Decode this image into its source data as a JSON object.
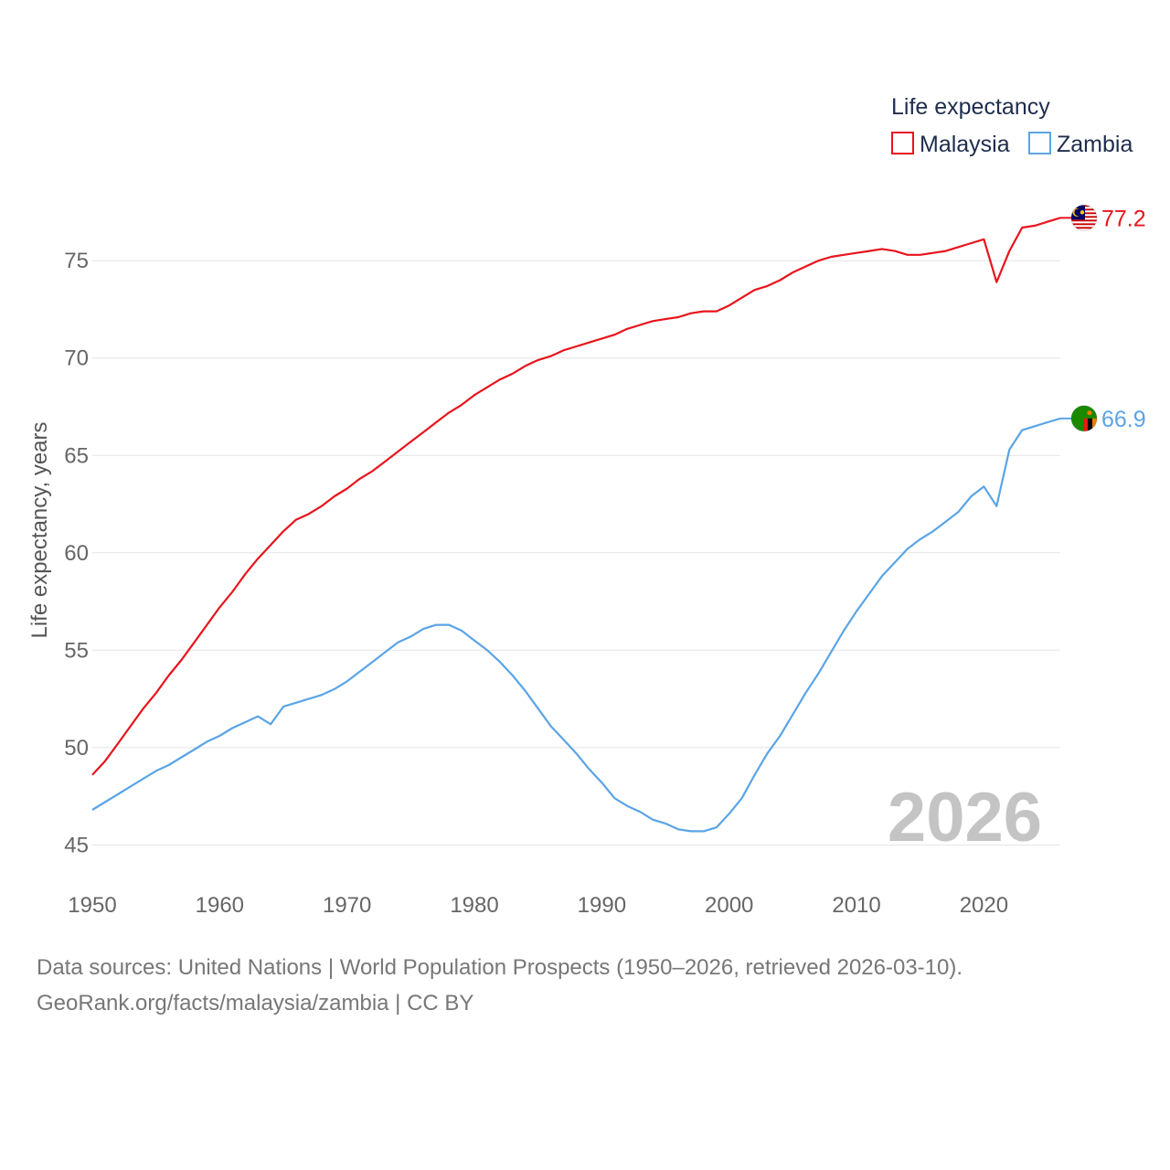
{
  "chart_data": {
    "type": "line",
    "legend_title": "Life expectancy",
    "ylabel": "Life expectancy, years",
    "xlabel": "",
    "xlim": [
      1950,
      2026
    ],
    "ylim": [
      44.5,
      79.0
    ],
    "x_ticks": [
      "1950",
      "1960",
      "1970",
      "1980",
      "1990",
      "2000",
      "2010",
      "2020"
    ],
    "y_ticks": [
      "45",
      "50",
      "55",
      "60",
      "65",
      "70",
      "75"
    ],
    "year_watermark": "2026",
    "series": [
      {
        "name": "Malaysia",
        "color": "#e8141c",
        "end_label": "77.2",
        "flag_icon": "malaysia-flag-icon",
        "x": [
          1950,
          1951,
          1952,
          1953,
          1954,
          1955,
          1956,
          1957,
          1958,
          1959,
          1960,
          1961,
          1962,
          1963,
          1964,
          1965,
          1966,
          1967,
          1968,
          1969,
          1970,
          1971,
          1972,
          1973,
          1974,
          1975,
          1976,
          1977,
          1978,
          1979,
          1980,
          1981,
          1982,
          1983,
          1984,
          1985,
          1986,
          1987,
          1988,
          1989,
          1990,
          1991,
          1992,
          1993,
          1994,
          1995,
          1996,
          1997,
          1998,
          1999,
          2000,
          2001,
          2002,
          2003,
          2004,
          2005,
          2006,
          2007,
          2008,
          2009,
          2010,
          2011,
          2012,
          2013,
          2014,
          2015,
          2016,
          2017,
          2018,
          2019,
          2020,
          2021,
          2022,
          2023,
          2024,
          2025,
          2026
        ],
        "y": [
          48.6,
          49.3,
          50.2,
          51.1,
          52.0,
          52.8,
          53.7,
          54.5,
          55.4,
          56.3,
          57.2,
          58.0,
          58.9,
          59.7,
          60.4,
          61.1,
          61.7,
          62.0,
          62.4,
          62.9,
          63.3,
          63.8,
          64.2,
          64.7,
          65.2,
          65.7,
          66.2,
          66.7,
          67.2,
          67.6,
          68.1,
          68.5,
          68.9,
          69.2,
          69.6,
          69.9,
          70.1,
          70.4,
          70.6,
          70.8,
          71.0,
          71.2,
          71.5,
          71.7,
          71.9,
          72.0,
          72.1,
          72.3,
          72.4,
          72.4,
          72.7,
          73.1,
          73.5,
          73.7,
          74.0,
          74.4,
          74.7,
          75.0,
          75.2,
          75.3,
          75.4,
          75.5,
          75.6,
          75.5,
          75.3,
          75.3,
          75.4,
          75.5,
          75.7,
          75.9,
          76.1,
          73.9,
          75.5,
          76.7,
          76.8,
          77.0,
          77.2
        ]
      },
      {
        "name": "Zambia",
        "color": "#5ba4e6",
        "end_label": "66.9",
        "flag_icon": "zambia-flag-icon",
        "x": [
          1950,
          1951,
          1952,
          1953,
          1954,
          1955,
          1956,
          1957,
          1958,
          1959,
          1960,
          1961,
          1962,
          1963,
          1964,
          1965,
          1966,
          1967,
          1968,
          1969,
          1970,
          1971,
          1972,
          1973,
          1974,
          1975,
          1976,
          1977,
          1978,
          1979,
          1980,
          1981,
          1982,
          1983,
          1984,
          1985,
          1986,
          1987,
          1988,
          1989,
          1990,
          1991,
          1992,
          1993,
          1994,
          1995,
          1996,
          1997,
          1998,
          1999,
          2000,
          2001,
          2002,
          2003,
          2004,
          2005,
          2006,
          2007,
          2008,
          2009,
          2010,
          2011,
          2012,
          2013,
          2014,
          2015,
          2016,
          2017,
          2018,
          2019,
          2020,
          2021,
          2022,
          2023,
          2024,
          2025,
          2026
        ],
        "y": [
          46.8,
          47.2,
          47.6,
          48.0,
          48.4,
          48.8,
          49.1,
          49.5,
          49.9,
          50.3,
          50.6,
          51.0,
          51.3,
          51.6,
          51.2,
          52.1,
          52.3,
          52.5,
          52.7,
          53.0,
          53.4,
          53.9,
          54.4,
          54.9,
          55.4,
          55.7,
          56.1,
          56.3,
          56.3,
          56.0,
          55.5,
          55.0,
          54.4,
          53.7,
          52.9,
          52.0,
          51.1,
          50.4,
          49.7,
          48.9,
          48.2,
          47.4,
          47.0,
          46.7,
          46.3,
          46.1,
          45.8,
          45.7,
          45.7,
          45.9,
          46.6,
          47.4,
          48.6,
          49.7,
          50.6,
          51.7,
          52.8,
          53.8,
          54.9,
          56.0,
          57.0,
          57.9,
          58.8,
          59.5,
          60.2,
          60.7,
          61.1,
          61.6,
          62.1,
          62.9,
          63.4,
          62.4,
          65.3,
          66.3,
          66.5,
          66.7,
          66.9
        ]
      }
    ]
  },
  "footer": {
    "source_line": "Data sources: United Nations | World Population Prospects (1950–2026, retrieved 2026-03-10).",
    "credit_line": "GeoRank.org/facts/malaysia/zambia | CC BY"
  }
}
